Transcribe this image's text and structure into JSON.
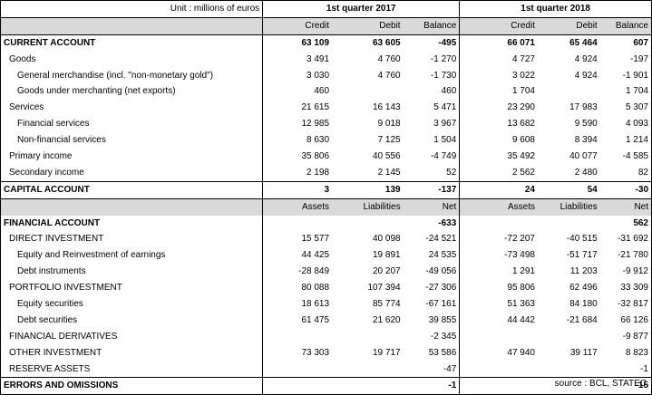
{
  "unit": "Unit : millions of euros",
  "source": "source : BCL, STATEC",
  "periods": [
    "1st quarter 2017",
    "1st quarter 2018"
  ],
  "current_headers": [
    "Credit",
    "Debit",
    "Balance",
    "Credit",
    "Debit",
    "Balance"
  ],
  "financial_headers": [
    "Assets",
    "Liabilities",
    "Net",
    "Assets",
    "Liabilities",
    "Net"
  ],
  "rows_current": [
    {
      "label": "CURRENT ACCOUNT",
      "level": 0,
      "bold": true,
      "values": [
        "63 109",
        "63 605",
        "-495",
        "66 071",
        "65 464",
        "607"
      ]
    },
    {
      "label": "Goods",
      "level": 1,
      "values": [
        "3 491",
        "4 760",
        "-1 270",
        "4 727",
        "4 924",
        "-197"
      ]
    },
    {
      "label": "General merchandise (incl. \"non-monetary gold\")",
      "level": 2,
      "values": [
        "3 030",
        "4 760",
        "-1 730",
        "3 022",
        "4 924",
        "-1 901"
      ]
    },
    {
      "label": "Goods under merchanting (net exports)",
      "level": 2,
      "values": [
        "460",
        "",
        "460",
        "1 704",
        "",
        "1 704"
      ]
    },
    {
      "label": "Services",
      "level": 1,
      "values": [
        "21 615",
        "16 143",
        "5 471",
        "23 290",
        "17 983",
        "5 307"
      ]
    },
    {
      "label": "Financial services",
      "level": 2,
      "values": [
        "12 985",
        "9 018",
        "3 967",
        "13 682",
        "9 590",
        "4 093"
      ]
    },
    {
      "label": "Non-financial services",
      "level": 2,
      "values": [
        "8 630",
        "7 125",
        "1 504",
        "9 608",
        "8 394",
        "1 214"
      ]
    },
    {
      "label": "Primary income",
      "level": 1,
      "values": [
        "35 806",
        "40 556",
        "-4 749",
        "35 492",
        "40 077",
        "-4 585"
      ]
    },
    {
      "label": "Secondary income",
      "level": 1,
      "values": [
        "2 198",
        "2 145",
        "52",
        "2 562",
        "2 480",
        "82"
      ]
    },
    {
      "label": "CAPITAL ACCOUNT",
      "level": 0,
      "bold": true,
      "values": [
        "3",
        "139",
        "-137",
        "24",
        "54",
        "-30"
      ]
    }
  ],
  "rows_financial": [
    {
      "label": "FINANCIAL ACCOUNT",
      "level": 0,
      "bold": true,
      "values": [
        "",
        "",
        "-633",
        "",
        "",
        "562"
      ]
    },
    {
      "label": "DIRECT INVESTMENT",
      "level": 1,
      "values": [
        "15 577",
        "40 098",
        "-24 521",
        "-72 207",
        "-40 515",
        "-31 692"
      ]
    },
    {
      "label": "Equity and Reinvestment of earnings",
      "level": 2,
      "values": [
        "44 425",
        "19 891",
        "24 535",
        "-73 498",
        "-51 717",
        "-21 780"
      ]
    },
    {
      "label": "Debt instruments",
      "level": 2,
      "values": [
        "-28 849",
        "20 207",
        "-49 056",
        "1 291",
        "11 203",
        "-9 912"
      ]
    },
    {
      "label": "PORTFOLIO INVESTMENT",
      "level": 1,
      "values": [
        "80 088",
        "107 394",
        "-27 306",
        "95 806",
        "62 496",
        "33 309"
      ]
    },
    {
      "label": "Equity securities",
      "level": 2,
      "values": [
        "18 613",
        "85 774",
        "-67 161",
        "51 363",
        "84 180",
        "-32 817"
      ]
    },
    {
      "label": "Debt securities",
      "level": 2,
      "values": [
        "61 475",
        "21 620",
        "39 855",
        "44 442",
        "-21 684",
        "66 126"
      ]
    },
    {
      "label": "FINANCIAL DERIVATIVES",
      "level": 1,
      "values": [
        "",
        "",
        "-2 345",
        "",
        "",
        "-9 877"
      ]
    },
    {
      "label": "OTHER INVESTMENT",
      "level": 1,
      "values": [
        "73 303",
        "19 717",
        "53 586",
        "47 940",
        "39 117",
        "8 823"
      ]
    },
    {
      "label": "RESERVE ASSETS",
      "level": 1,
      "values": [
        "",
        "",
        "-47",
        "",
        "",
        "-1"
      ]
    },
    {
      "label": "ERRORS AND OMISSIONS",
      "level": 0,
      "bold": true,
      "values": [
        "",
        "",
        "-1",
        "",
        "",
        "-15"
      ]
    }
  ]
}
